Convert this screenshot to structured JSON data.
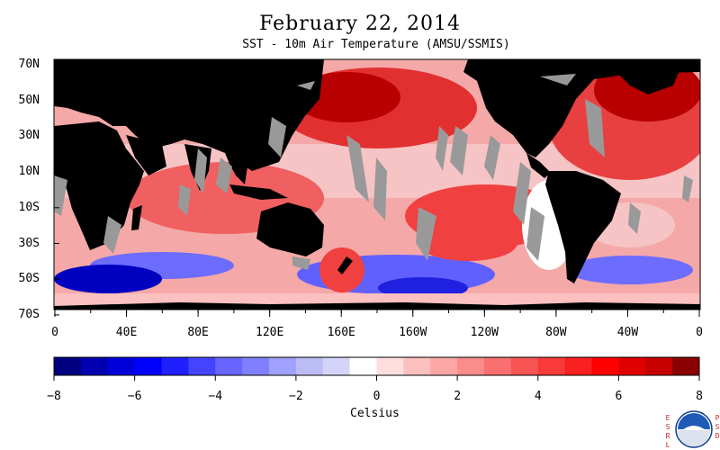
{
  "title": "February 22, 2014",
  "subtitle": "SST - 10m Air Temperature (AMSU/SSMIS)",
  "lat_labels": [
    "70N",
    "50N",
    "30N",
    "10N",
    "10S",
    "30S",
    "50S",
    "70S"
  ],
  "lon_labels": [
    "0",
    "40E",
    "80E",
    "120E",
    "160E",
    "160W",
    "120W",
    "80W",
    "40W",
    "0"
  ],
  "colorbar": {
    "min": -8,
    "max": 8,
    "tick_labels": [
      "-8",
      "-6",
      "-4",
      "-2",
      "0",
      "2",
      "4",
      "6",
      "8"
    ],
    "units": "Celsius",
    "colors": [
      "#000080",
      "#0000b0",
      "#0000d8",
      "#0000ff",
      "#2020ff",
      "#4444ff",
      "#6666ff",
      "#8080ff",
      "#a0a0ff",
      "#bcbcf4",
      "#d4d4f8",
      "#ffffff",
      "#ffdede",
      "#fcc0c0",
      "#fca6a6",
      "#fa8c8c",
      "#fa7070",
      "#f85454",
      "#f83a3a",
      "#f82020",
      "#ff0000",
      "#e00000",
      "#c80000",
      "#8b0000"
    ]
  },
  "land_color": "#000000",
  "missing_color": "#999999",
  "logo": {
    "esrl": "ESRL",
    "psd": "PSD",
    "noaa": "NOAA"
  }
}
